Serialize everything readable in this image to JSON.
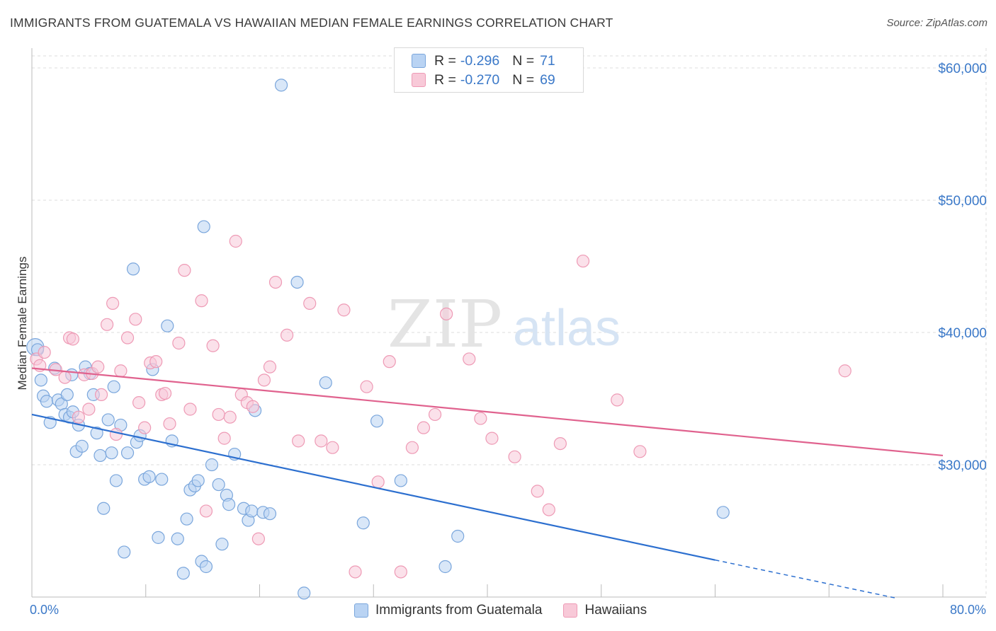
{
  "title": "IMMIGRANTS FROM GUATEMALA VS HAWAIIAN MEDIAN FEMALE EARNINGS CORRELATION CHART",
  "source": "Source: ZipAtlas.com",
  "watermark": {
    "zip": "ZIP",
    "atlas": "atlas"
  },
  "colors": {
    "blue_fill": "#b9d3f3",
    "blue_stroke": "#7aa6dc",
    "blue_line": "#2c6fcf",
    "pink_fill": "#f8c9d8",
    "pink_stroke": "#ee9ab5",
    "pink_line": "#e0628e",
    "axis_label": "#3a78c8",
    "grid": "#dcdcdc"
  },
  "legend_top": {
    "rows": [
      {
        "r_label": "R =",
        "r_value": "-0.296",
        "n_label": "N =",
        "n_value": "71"
      },
      {
        "r_label": "R =",
        "r_value": "-0.270",
        "n_label": "N =",
        "n_value": "69"
      }
    ]
  },
  "chart_data": {
    "type": "scatter",
    "xlabel": "",
    "ylabel": "Median Female Earnings",
    "x_tick_labels": [
      "0.0%",
      "80.0%"
    ],
    "y_tick_labels": [
      "$60,000",
      "$50,000",
      "$40,000",
      "$30,000"
    ],
    "y_ticks": [
      60000,
      50000,
      40000,
      30000
    ],
    "xlim": [
      0,
      80
    ],
    "ylim": [
      20000,
      61500
    ],
    "grid": true,
    "legend": "bottom",
    "series": [
      {
        "name": "Immigrants from Guatemala",
        "color": "blue",
        "trend": {
          "x0": 0,
          "y0": 33800,
          "x1": 60,
          "y1": 22800,
          "dash_to_x": 76,
          "dash_to_y": 19900
        },
        "points": [
          [
            0.3,
            38900
          ],
          [
            0.8,
            36400
          ],
          [
            1.0,
            35200
          ],
          [
            1.3,
            34800
          ],
          [
            1.6,
            33200
          ],
          [
            2.0,
            37300
          ],
          [
            2.3,
            34900
          ],
          [
            2.6,
            34600
          ],
          [
            2.9,
            33800
          ],
          [
            3.1,
            35300
          ],
          [
            3.3,
            33600
          ],
          [
            3.6,
            34000
          ],
          [
            3.9,
            31000
          ],
          [
            4.1,
            33000
          ],
          [
            4.4,
            31400
          ],
          [
            4.7,
            37400
          ],
          [
            5.1,
            36900
          ],
          [
            5.4,
            35300
          ],
          [
            5.7,
            32400
          ],
          [
            6.0,
            30700
          ],
          [
            6.3,
            26700
          ],
          [
            6.7,
            33400
          ],
          [
            7.0,
            30900
          ],
          [
            7.4,
            28800
          ],
          [
            7.8,
            33000
          ],
          [
            8.1,
            23400
          ],
          [
            8.4,
            30900
          ],
          [
            8.9,
            44800
          ],
          [
            9.2,
            31700
          ],
          [
            9.5,
            32200
          ],
          [
            9.9,
            28900
          ],
          [
            10.3,
            29100
          ],
          [
            10.6,
            37200
          ],
          [
            11.1,
            24500
          ],
          [
            11.4,
            28900
          ],
          [
            11.9,
            40500
          ],
          [
            12.3,
            31800
          ],
          [
            12.8,
            24400
          ],
          [
            13.3,
            21800
          ],
          [
            13.6,
            25900
          ],
          [
            13.9,
            28100
          ],
          [
            14.3,
            28400
          ],
          [
            14.6,
            28800
          ],
          [
            14.9,
            22700
          ],
          [
            15.1,
            48000
          ],
          [
            15.3,
            22300
          ],
          [
            15.8,
            30000
          ],
          [
            16.4,
            28500
          ],
          [
            16.7,
            24000
          ],
          [
            17.1,
            27700
          ],
          [
            17.3,
            27000
          ],
          [
            17.8,
            30800
          ],
          [
            18.6,
            26700
          ],
          [
            19.0,
            25800
          ],
          [
            19.3,
            26500
          ],
          [
            19.6,
            34100
          ],
          [
            20.3,
            26400
          ],
          [
            20.9,
            26300
          ],
          [
            21.9,
            58700
          ],
          [
            23.3,
            43800
          ],
          [
            23.9,
            20300
          ],
          [
            25.8,
            36200
          ],
          [
            29.1,
            25600
          ],
          [
            30.3,
            33300
          ],
          [
            32.4,
            28800
          ],
          [
            36.3,
            22300
          ],
          [
            37.4,
            24600
          ],
          [
            60.7,
            26400
          ],
          [
            0.5,
            38700
          ],
          [
            3.5,
            36800
          ],
          [
            7.2,
            35900
          ]
        ]
      },
      {
        "name": "Hawaiians",
        "color": "pink",
        "trend": {
          "x0": 0,
          "y0": 37300,
          "x1": 80,
          "y1": 30700
        },
        "points": [
          [
            0.4,
            38000
          ],
          [
            0.7,
            37500
          ],
          [
            1.1,
            38500
          ],
          [
            2.1,
            37200
          ],
          [
            2.9,
            36600
          ],
          [
            3.3,
            39600
          ],
          [
            3.6,
            39500
          ],
          [
            4.1,
            33600
          ],
          [
            4.6,
            36800
          ],
          [
            5.0,
            34200
          ],
          [
            5.3,
            36900
          ],
          [
            5.8,
            37400
          ],
          [
            6.1,
            35300
          ],
          [
            6.6,
            40600
          ],
          [
            7.1,
            42200
          ],
          [
            7.4,
            32300
          ],
          [
            7.8,
            37100
          ],
          [
            8.4,
            39600
          ],
          [
            9.1,
            41000
          ],
          [
            9.4,
            34700
          ],
          [
            9.9,
            32800
          ],
          [
            10.4,
            37700
          ],
          [
            10.9,
            37800
          ],
          [
            11.4,
            35300
          ],
          [
            11.7,
            35400
          ],
          [
            12.1,
            33100
          ],
          [
            12.9,
            39200
          ],
          [
            13.4,
            44700
          ],
          [
            13.9,
            34200
          ],
          [
            14.9,
            42400
          ],
          [
            15.3,
            26500
          ],
          [
            15.9,
            39000
          ],
          [
            16.4,
            33800
          ],
          [
            16.9,
            32000
          ],
          [
            17.4,
            33600
          ],
          [
            17.9,
            46900
          ],
          [
            18.4,
            35300
          ],
          [
            18.9,
            34700
          ],
          [
            19.4,
            34400
          ],
          [
            19.9,
            24400
          ],
          [
            20.4,
            36400
          ],
          [
            20.9,
            37400
          ],
          [
            21.4,
            43800
          ],
          [
            22.4,
            39800
          ],
          [
            23.4,
            31800
          ],
          [
            24.4,
            42200
          ],
          [
            25.4,
            31800
          ],
          [
            26.4,
            31300
          ],
          [
            27.4,
            41700
          ],
          [
            28.4,
            21900
          ],
          [
            29.4,
            35900
          ],
          [
            30.4,
            28700
          ],
          [
            31.4,
            37800
          ],
          [
            32.4,
            21900
          ],
          [
            33.4,
            31300
          ],
          [
            34.4,
            32800
          ],
          [
            35.4,
            33800
          ],
          [
            36.4,
            41400
          ],
          [
            38.4,
            38000
          ],
          [
            39.4,
            33500
          ],
          [
            40.4,
            32000
          ],
          [
            42.4,
            30600
          ],
          [
            44.4,
            28000
          ],
          [
            45.4,
            26600
          ],
          [
            46.4,
            31600
          ],
          [
            48.4,
            45400
          ],
          [
            51.4,
            34900
          ],
          [
            53.4,
            31000
          ],
          [
            71.4,
            37100
          ]
        ]
      }
    ]
  }
}
